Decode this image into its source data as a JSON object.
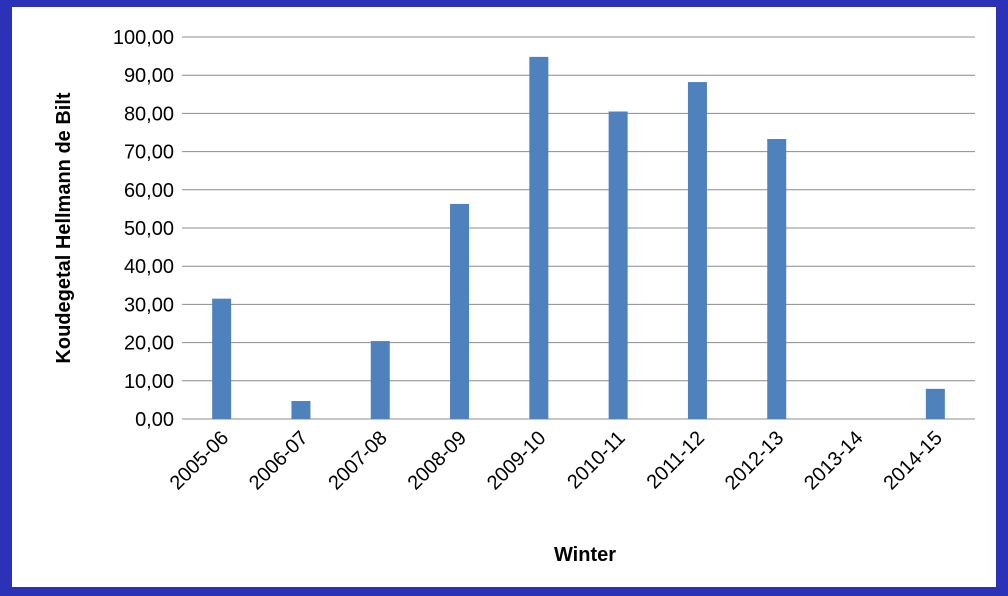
{
  "chart_data": {
    "type": "bar",
    "title": "",
    "xlabel": "Winter",
    "ylabel": "Koudegetal Hellmann de Bilt",
    "categories": [
      "2005-06",
      "2006-07",
      "2007-08",
      "2008-09",
      "2009-10",
      "2010-11",
      "2011-12",
      "2012-13",
      "2013-14",
      "2014-15"
    ],
    "values": [
      31.5,
      4.7,
      20.4,
      56.3,
      94.8,
      80.5,
      88.2,
      73.3,
      0,
      7.9
    ],
    "ylim": [
      0,
      100
    ],
    "yticks": [
      "0,00",
      "10,00",
      "20,00",
      "30,00",
      "40,00",
      "50,00",
      "60,00",
      "70,00",
      "80,00",
      "90,00",
      "100,00"
    ],
    "grid": true,
    "legend": "none",
    "bar_color": "#4f81bd",
    "gridline_color": "#8c8c8c"
  }
}
